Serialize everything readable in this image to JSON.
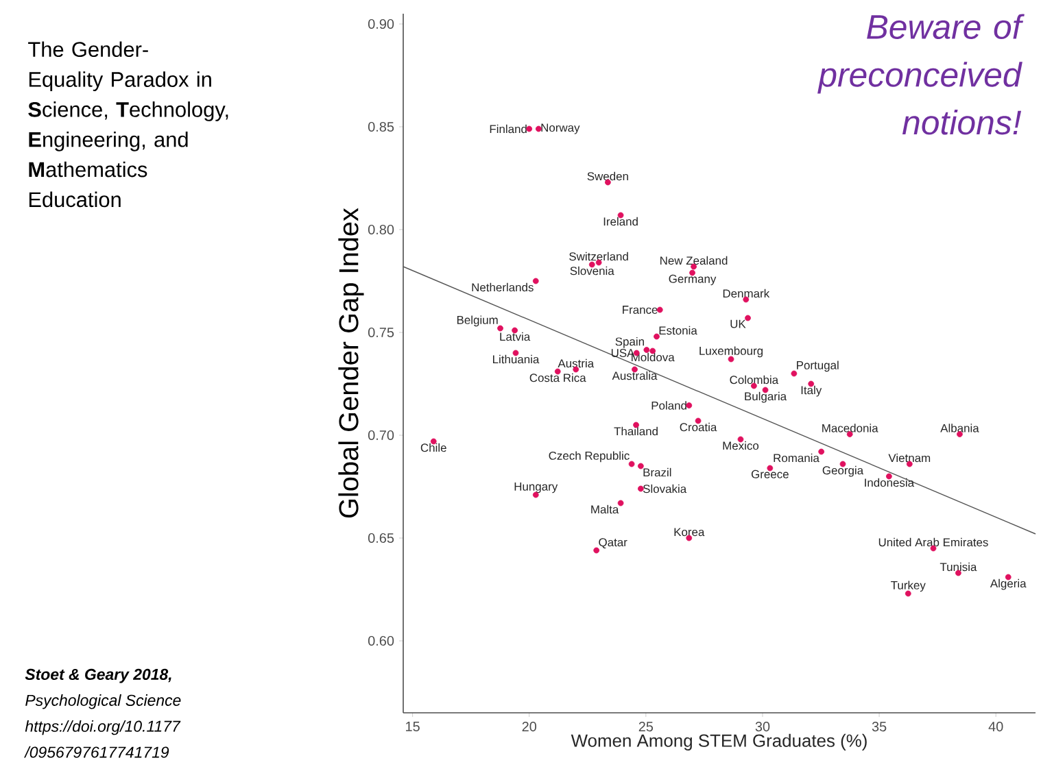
{
  "chart_data": {
    "type": "scatter",
    "title": "The Gender-Equality Paradox in **S**cience, **T**echnology, **E**ngineering, and **M**athematics Education",
    "xlabel": "Women Among STEM Graduates (%)",
    "ylabel": "Global Gender Gap Index",
    "xlim": [
      14.6,
      41.7
    ],
    "ylim": [
      0.565,
      0.905
    ],
    "xticks": [
      15,
      20,
      25,
      30,
      35,
      40
    ],
    "yticks": [
      {
        "value": 0.6,
        "label": "0.60"
      },
      {
        "value": 0.65,
        "label": "0.65"
      },
      {
        "value": 0.7,
        "label": "0.70"
      },
      {
        "value": 0.75,
        "label": "0.75"
      },
      {
        "value": 0.8,
        "label": "0.80"
      },
      {
        "value": 0.85,
        "label": "0.85"
      },
      {
        "value": 0.9,
        "label": "0.90"
      }
    ],
    "series": [
      {
        "color": "#e0115f",
        "marker": "circle",
        "x": [
          20.0,
          20.4,
          23.37,
          23.92,
          22.98,
          22.69,
          20.28,
          27.05,
          26.99,
          29.29,
          29.37,
          25.6,
          25.46,
          18.76,
          19.38,
          19.42,
          25.03,
          25.29,
          28.65,
          24.6,
          24.52,
          22.0,
          21.22,
          29.63,
          31.35,
          30.12,
          32.08,
          26.85,
          27.24,
          24.58,
          15.9,
          24.39,
          24.78,
          20.28,
          24.78,
          23.92,
          22.88,
          26.85,
          29.06,
          30.32,
          33.74,
          38.45,
          32.52,
          33.44,
          36.3,
          35.42,
          37.32,
          38.39,
          36.24,
          40.53
        ],
        "values": [
          0.849,
          0.849,
          0.823,
          0.807,
          0.784,
          0.783,
          0.775,
          0.782,
          0.779,
          0.766,
          0.757,
          0.761,
          0.748,
          0.752,
          0.751,
          0.74,
          0.7415,
          0.741,
          0.737,
          0.74,
          0.732,
          0.732,
          0.731,
          0.724,
          0.73,
          0.722,
          0.725,
          0.7145,
          0.707,
          0.705,
          0.697,
          0.686,
          0.685,
          0.671,
          0.674,
          0.667,
          0.644,
          0.65,
          0.698,
          0.684,
          0.7005,
          0.7005,
          0.692,
          0.686,
          0.686,
          0.68,
          0.645,
          0.633,
          0.623,
          0.631
        ]
      },
      {
        "type": "line",
        "color": "#555555",
        "marker": "none",
        "x": [
          14.6,
          41.7
        ],
        "values": [
          0.782,
          0.652
        ]
      }
    ],
    "annotations": [
      "Beware of preconceived notions!",
      "Stoet & Geary 2018,",
      "Psychological Science",
      "https://doi.org/10.1177",
      "/0956797617741719",
      {
        "text": "Finland",
        "x": 20.0,
        "y": 0.849
      },
      {
        "text": "Norway",
        "x": 20.4,
        "y": 0.849
      },
      {
        "text": "Sweden",
        "x": 23.37,
        "y": 0.823
      },
      {
        "text": "Ireland",
        "x": 23.92,
        "y": 0.807
      },
      {
        "text": "Switzerland",
        "x": 22.98,
        "y": 0.784
      },
      {
        "text": "Slovenia",
        "x": 22.69,
        "y": 0.783
      },
      {
        "text": "Netherlands",
        "x": 20.28,
        "y": 0.775
      },
      {
        "text": "New Zealand",
        "x": 27.05,
        "y": 0.782
      },
      {
        "text": "Germany",
        "x": 26.99,
        "y": 0.779
      },
      {
        "text": "Denmark",
        "x": 29.29,
        "y": 0.766
      },
      {
        "text": "UK",
        "x": 29.37,
        "y": 0.757
      },
      {
        "text": "France",
        "x": 25.6,
        "y": 0.761
      },
      {
        "text": "Estonia",
        "x": 25.46,
        "y": 0.748
      },
      {
        "text": "Belgium",
        "x": 18.76,
        "y": 0.752
      },
      {
        "text": "Latvia",
        "x": 19.38,
        "y": 0.751
      },
      {
        "text": "Lithuania",
        "x": 19.42,
        "y": 0.74
      },
      {
        "text": "Spain",
        "x": 25.03,
        "y": 0.7415
      },
      {
        "text": "Moldova",
        "x": 25.29,
        "y": 0.741
      },
      {
        "text": "Luxembourg",
        "x": 28.65,
        "y": 0.737
      },
      {
        "text": "USA",
        "x": 24.6,
        "y": 0.74
      },
      {
        "text": "Australia",
        "x": 24.52,
        "y": 0.732
      },
      {
        "text": "Austria",
        "x": 22.0,
        "y": 0.732
      },
      {
        "text": "Costa Rica",
        "x": 21.22,
        "y": 0.731
      },
      {
        "text": "Colombia",
        "x": 29.63,
        "y": 0.724
      },
      {
        "text": "Portugal",
        "x": 31.35,
        "y": 0.73
      },
      {
        "text": "Bulgaria",
        "x": 30.12,
        "y": 0.722
      },
      {
        "text": "Italy",
        "x": 32.08,
        "y": 0.725
      },
      {
        "text": "Poland",
        "x": 26.85,
        "y": 0.7145
      },
      {
        "text": "Croatia",
        "x": 27.24,
        "y": 0.707
      },
      {
        "text": "Thailand",
        "x": 24.58,
        "y": 0.705
      },
      {
        "text": "Chile",
        "x": 15.9,
        "y": 0.697
      },
      {
        "text": "Czech Republic",
        "x": 24.39,
        "y": 0.686
      },
      {
        "text": "Brazil",
        "x": 24.78,
        "y": 0.685
      },
      {
        "text": "Hungary",
        "x": 20.28,
        "y": 0.671
      },
      {
        "text": "Slovakia",
        "x": 24.78,
        "y": 0.674
      },
      {
        "text": "Malta",
        "x": 23.92,
        "y": 0.667
      },
      {
        "text": "Qatar",
        "x": 22.88,
        "y": 0.644
      },
      {
        "text": "Korea",
        "x": 26.85,
        "y": 0.65
      },
      {
        "text": "Mexico",
        "x": 29.06,
        "y": 0.698
      },
      {
        "text": "Greece",
        "x": 30.32,
        "y": 0.684
      },
      {
        "text": "Macedonia",
        "x": 33.74,
        "y": 0.7005
      },
      {
        "text": "Albania",
        "x": 38.45,
        "y": 0.7005
      },
      {
        "text": "Romania",
        "x": 32.52,
        "y": 0.692
      },
      {
        "text": "Georgia",
        "x": 33.44,
        "y": 0.686
      },
      {
        "text": "Vietnam",
        "x": 36.3,
        "y": 0.686
      },
      {
        "text": "Indonesia",
        "x": 35.42,
        "y": 0.68
      },
      {
        "text": "United Arab Emirates",
        "x": 37.32,
        "y": 0.645
      },
      {
        "text": "Tunisia",
        "x": 38.39,
        "y": 0.633
      },
      {
        "text": "Turkey",
        "x": 36.24,
        "y": 0.623
      },
      {
        "text": "Algeria",
        "x": 40.53,
        "y": 0.631
      }
    ]
  }
}
